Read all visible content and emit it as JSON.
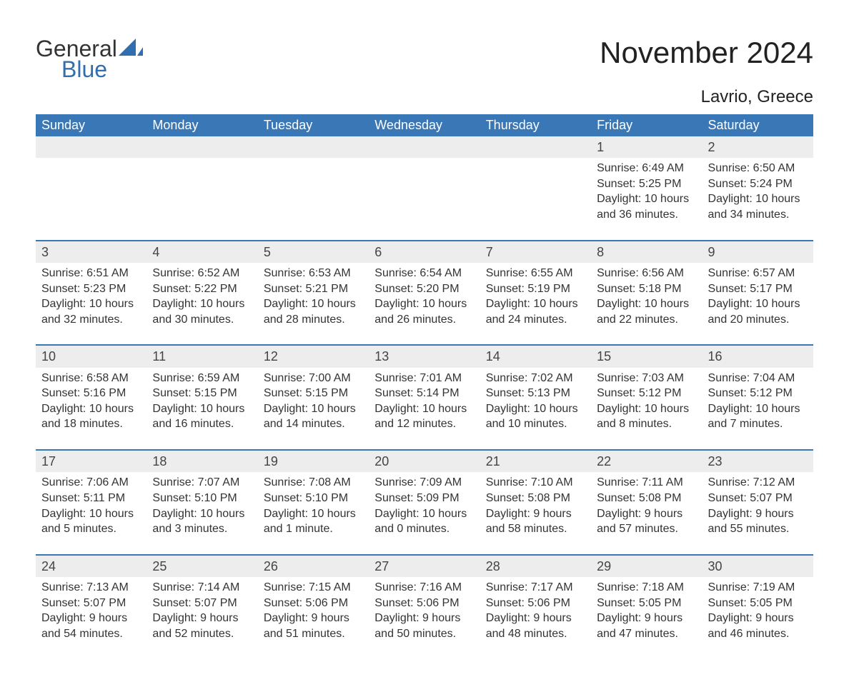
{
  "logo": {
    "text1": "General",
    "text2": "Blue",
    "accent": "#2f6fb0"
  },
  "title": "November 2024",
  "location": "Lavrio, Greece",
  "header_bg": "#3a77b7",
  "header_fg": "#ffffff",
  "daynum_bg": "#ededed",
  "text_color": "#333333",
  "weekdays": [
    "Sunday",
    "Monday",
    "Tuesday",
    "Wednesday",
    "Thursday",
    "Friday",
    "Saturday"
  ],
  "labels": {
    "sunrise": "Sunrise:",
    "sunset": "Sunset:",
    "daylight": "Daylight:"
  },
  "weeks": [
    [
      null,
      null,
      null,
      null,
      null,
      {
        "day": "1",
        "sunrise": "6:49 AM",
        "sunset": "5:25 PM",
        "daylight": "10 hours and 36 minutes."
      },
      {
        "day": "2",
        "sunrise": "6:50 AM",
        "sunset": "5:24 PM",
        "daylight": "10 hours and 34 minutes."
      }
    ],
    [
      {
        "day": "3",
        "sunrise": "6:51 AM",
        "sunset": "5:23 PM",
        "daylight": "10 hours and 32 minutes."
      },
      {
        "day": "4",
        "sunrise": "6:52 AM",
        "sunset": "5:22 PM",
        "daylight": "10 hours and 30 minutes."
      },
      {
        "day": "5",
        "sunrise": "6:53 AM",
        "sunset": "5:21 PM",
        "daylight": "10 hours and 28 minutes."
      },
      {
        "day": "6",
        "sunrise": "6:54 AM",
        "sunset": "5:20 PM",
        "daylight": "10 hours and 26 minutes."
      },
      {
        "day": "7",
        "sunrise": "6:55 AM",
        "sunset": "5:19 PM",
        "daylight": "10 hours and 24 minutes."
      },
      {
        "day": "8",
        "sunrise": "6:56 AM",
        "sunset": "5:18 PM",
        "daylight": "10 hours and 22 minutes."
      },
      {
        "day": "9",
        "sunrise": "6:57 AM",
        "sunset": "5:17 PM",
        "daylight": "10 hours and 20 minutes."
      }
    ],
    [
      {
        "day": "10",
        "sunrise": "6:58 AM",
        "sunset": "5:16 PM",
        "daylight": "10 hours and 18 minutes."
      },
      {
        "day": "11",
        "sunrise": "6:59 AM",
        "sunset": "5:15 PM",
        "daylight": "10 hours and 16 minutes."
      },
      {
        "day": "12",
        "sunrise": "7:00 AM",
        "sunset": "5:15 PM",
        "daylight": "10 hours and 14 minutes."
      },
      {
        "day": "13",
        "sunrise": "7:01 AM",
        "sunset": "5:14 PM",
        "daylight": "10 hours and 12 minutes."
      },
      {
        "day": "14",
        "sunrise": "7:02 AM",
        "sunset": "5:13 PM",
        "daylight": "10 hours and 10 minutes."
      },
      {
        "day": "15",
        "sunrise": "7:03 AM",
        "sunset": "5:12 PM",
        "daylight": "10 hours and 8 minutes."
      },
      {
        "day": "16",
        "sunrise": "7:04 AM",
        "sunset": "5:12 PM",
        "daylight": "10 hours and 7 minutes."
      }
    ],
    [
      {
        "day": "17",
        "sunrise": "7:06 AM",
        "sunset": "5:11 PM",
        "daylight": "10 hours and 5 minutes."
      },
      {
        "day": "18",
        "sunrise": "7:07 AM",
        "sunset": "5:10 PM",
        "daylight": "10 hours and 3 minutes."
      },
      {
        "day": "19",
        "sunrise": "7:08 AM",
        "sunset": "5:10 PM",
        "daylight": "10 hours and 1 minute."
      },
      {
        "day": "20",
        "sunrise": "7:09 AM",
        "sunset": "5:09 PM",
        "daylight": "10 hours and 0 minutes."
      },
      {
        "day": "21",
        "sunrise": "7:10 AM",
        "sunset": "5:08 PM",
        "daylight": "9 hours and 58 minutes."
      },
      {
        "day": "22",
        "sunrise": "7:11 AM",
        "sunset": "5:08 PM",
        "daylight": "9 hours and 57 minutes."
      },
      {
        "day": "23",
        "sunrise": "7:12 AM",
        "sunset": "5:07 PM",
        "daylight": "9 hours and 55 minutes."
      }
    ],
    [
      {
        "day": "24",
        "sunrise": "7:13 AM",
        "sunset": "5:07 PM",
        "daylight": "9 hours and 54 minutes."
      },
      {
        "day": "25",
        "sunrise": "7:14 AM",
        "sunset": "5:07 PM",
        "daylight": "9 hours and 52 minutes."
      },
      {
        "day": "26",
        "sunrise": "7:15 AM",
        "sunset": "5:06 PM",
        "daylight": "9 hours and 51 minutes."
      },
      {
        "day": "27",
        "sunrise": "7:16 AM",
        "sunset": "5:06 PM",
        "daylight": "9 hours and 50 minutes."
      },
      {
        "day": "28",
        "sunrise": "7:17 AM",
        "sunset": "5:06 PM",
        "daylight": "9 hours and 48 minutes."
      },
      {
        "day": "29",
        "sunrise": "7:18 AM",
        "sunset": "5:05 PM",
        "daylight": "9 hours and 47 minutes."
      },
      {
        "day": "30",
        "sunrise": "7:19 AM",
        "sunset": "5:05 PM",
        "daylight": "9 hours and 46 minutes."
      }
    ]
  ]
}
